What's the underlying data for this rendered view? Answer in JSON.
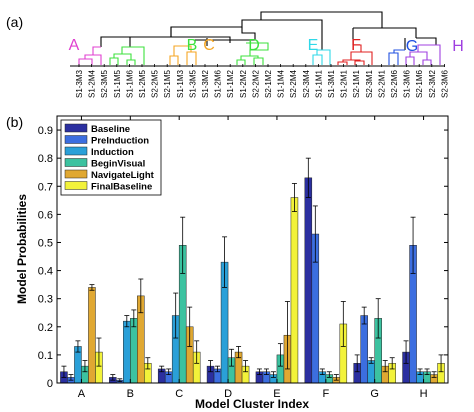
{
  "panel_a": {
    "label": "(a)",
    "cluster_letters": [
      {
        "letter": "A",
        "color": "#e040d0"
      },
      {
        "letter": "B",
        "color": "#3de23d"
      },
      {
        "letter": "C",
        "color": "#f5a623"
      },
      {
        "letter": "D",
        "color": "#3de23d"
      },
      {
        "letter": "E",
        "color": "#30d8e8"
      },
      {
        "letter": "F",
        "color": "#e02020"
      },
      {
        "letter": "G",
        "color": "#2050e0"
      },
      {
        "letter": "H",
        "color": "#a040e0"
      }
    ],
    "leaves": [
      {
        "label": "S1-3M3",
        "cluster": "A"
      },
      {
        "label": "S1-2M4",
        "cluster": "A"
      },
      {
        "label": "S2-3M5",
        "cluster": "A"
      },
      {
        "label": "S1-1M5",
        "cluster": "B"
      },
      {
        "label": "S1-1M6",
        "cluster": "B"
      },
      {
        "label": "S1-2M5",
        "cluster": "B"
      },
      {
        "label": "S2-2M5",
        "cluster": "B"
      },
      {
        "label": "S2-1M5",
        "cluster": "B"
      },
      {
        "label": "S1-1M3",
        "cluster": "C"
      },
      {
        "label": "S1-3M5",
        "cluster": "C"
      },
      {
        "label": "S1-3M2",
        "cluster": "C"
      },
      {
        "label": "S1-2M6",
        "cluster": "C"
      },
      {
        "label": "S1-1M2",
        "cluster": "D"
      },
      {
        "label": "S1-2M2",
        "cluster": "D"
      },
      {
        "label": "S2-2M2",
        "cluster": "D"
      },
      {
        "label": "S2-1M2",
        "cluster": "D"
      },
      {
        "label": "S1-1M4",
        "cluster": "E"
      },
      {
        "label": "S2-2M4",
        "cluster": "E"
      },
      {
        "label": "S2-3M4",
        "cluster": "E"
      },
      {
        "label": "S1-1M1",
        "cluster": "F"
      },
      {
        "label": "S1-3M1",
        "cluster": "F"
      },
      {
        "label": "S1-2M1",
        "cluster": "F"
      },
      {
        "label": "S2-1M1",
        "cluster": "F"
      },
      {
        "label": "S2-3M1",
        "cluster": "F"
      },
      {
        "label": "S2-2M1",
        "cluster": "G"
      },
      {
        "label": "S2-2M6",
        "cluster": "G"
      },
      {
        "label": "S1-3M6",
        "cluster": "H"
      },
      {
        "label": "S2-1M6",
        "cluster": "H"
      },
      {
        "label": "S2-3M2",
        "cluster": "H"
      },
      {
        "label": "S2-3M6",
        "cluster": "H"
      }
    ]
  },
  "chart_data": {
    "type": "bar",
    "panel_label": "(b)",
    "xlabel": "Model Cluster Index",
    "ylabel": "Model Probabilities",
    "ylim": [
      0,
      0.95
    ],
    "yticks": [
      0,
      0.1,
      0.2,
      0.3,
      0.4,
      0.5,
      0.6,
      0.7,
      0.8,
      0.9
    ],
    "ytick_labels": [
      "0",
      "0.1",
      "0.2",
      "0.3",
      "0.4",
      "0.5",
      "0.6",
      "0.7",
      "0.8",
      "0.9"
    ],
    "legend_position": "top-left",
    "categories": [
      "A",
      "B",
      "C",
      "D",
      "E",
      "F",
      "G",
      "H"
    ],
    "series": [
      {
        "name": "Baseline",
        "color": "#2b2fa0",
        "values": [
          0.04,
          0.02,
          0.05,
          0.06,
          0.04,
          0.73,
          0.07,
          0.11
        ],
        "errors": [
          0.02,
          0.01,
          0.01,
          0.02,
          0.01,
          0.07,
          0.03,
          0.04
        ]
      },
      {
        "name": "PreInduction",
        "color": "#3c6ee0",
        "values": [
          0.02,
          0.01,
          0.04,
          0.05,
          0.04,
          0.53,
          0.24,
          0.49
        ],
        "errors": [
          0.01,
          0.005,
          0.01,
          0.01,
          0.01,
          0.1,
          0.03,
          0.1
        ]
      },
      {
        "name": "Induction",
        "color": "#2aa0d8",
        "values": [
          0.13,
          0.22,
          0.24,
          0.43,
          0.03,
          0.04,
          0.08,
          0.04
        ],
        "errors": [
          0.02,
          0.02,
          0.08,
          0.09,
          0.01,
          0.01,
          0.01,
          0.01
        ]
      },
      {
        "name": "BeginVisual",
        "color": "#3cc2a0",
        "values": [
          0.06,
          0.23,
          0.49,
          0.09,
          0.1,
          0.03,
          0.23,
          0.04
        ],
        "errors": [
          0.02,
          0.03,
          0.1,
          0.03,
          0.04,
          0.01,
          0.07,
          0.01
        ]
      },
      {
        "name": "NavigateLight",
        "color": "#e0a832",
        "values": [
          0.34,
          0.31,
          0.2,
          0.11,
          0.17,
          0.02,
          0.06,
          0.03
        ],
        "errors": [
          0.01,
          0.06,
          0.07,
          0.02,
          0.12,
          0.01,
          0.02,
          0.01
        ]
      },
      {
        "name": "FinalBaseline",
        "color": "#f2f23a",
        "values": [
          0.11,
          0.07,
          0.11,
          0.06,
          0.66,
          0.21,
          0.07,
          0.07
        ],
        "errors": [
          0.05,
          0.02,
          0.04,
          0.02,
          0.05,
          0.08,
          0.02,
          0.03
        ]
      }
    ]
  }
}
